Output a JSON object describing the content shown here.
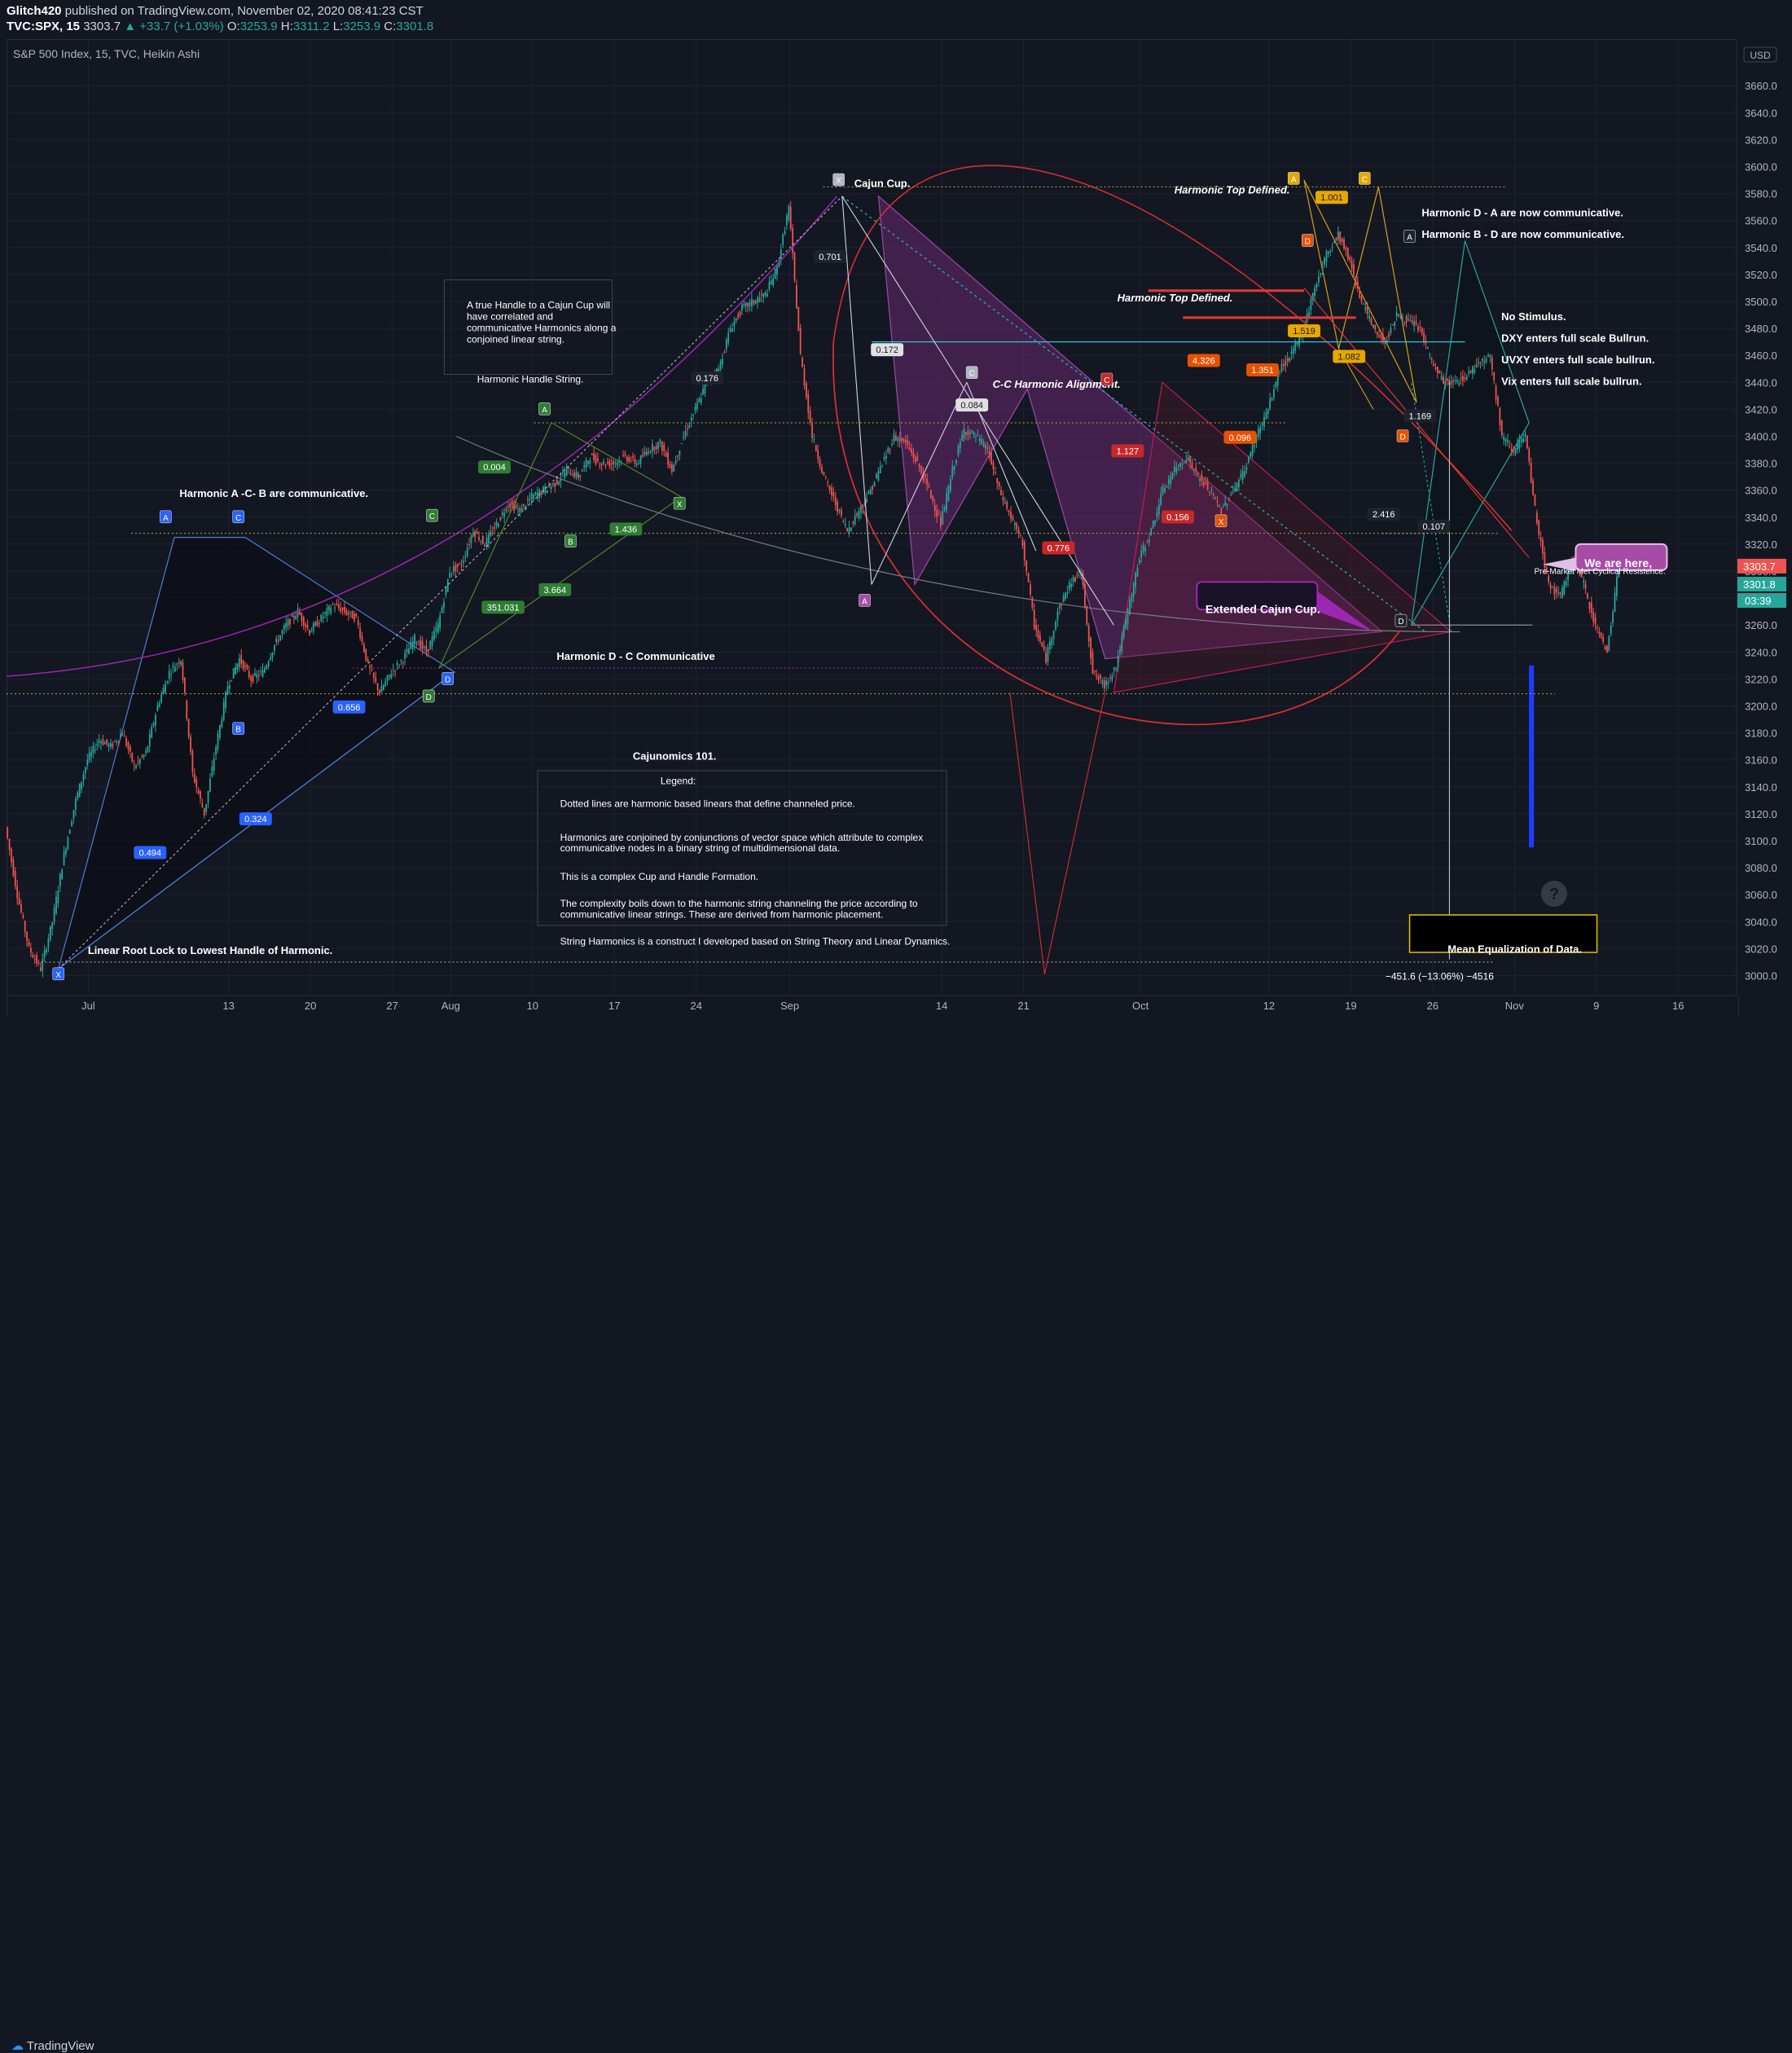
{
  "header": {
    "author": "Glitch420",
    "published_text": "published on TradingView.com, November 02, 2020 08:41:23 CST",
    "ticker": "TVC:SPX, 15",
    "last": "3303.7",
    "change": "+33.7 (+1.03%)",
    "o_label": "O:",
    "o_value": "3253.9",
    "h_label": "H:",
    "h_value": "3311.2",
    "l_label": "L:",
    "l_value": "3253.9",
    "c_label": "C:",
    "c_value": "3301.8"
  },
  "symbol_title": "S&P 500 Index, 15, TVC, Heikin Ashi",
  "footer": {
    "brand": "TradingView"
  },
  "price_axis": {
    "currency": "USD",
    "current_price_label": "3303.7",
    "second_price_label": "3301.8",
    "countdown": "03:39"
  },
  "chart_data": {
    "type": "line",
    "title": "S&P 500 Index, 15, TVC, Heikin Ashi",
    "ylim": [
      2990,
      3680
    ],
    "y_ticks": [
      3000,
      3020,
      3040,
      3060,
      3080,
      3100,
      3120,
      3140,
      3160,
      3180,
      3200,
      3220,
      3240,
      3260,
      3280,
      3300,
      3320,
      3340,
      3360,
      3380,
      3400,
      3420,
      3440,
      3460,
      3480,
      3500,
      3520,
      3540,
      3560,
      3580,
      3600,
      3620,
      3640,
      3660
    ],
    "x_ticks": [
      {
        "label": "Jul",
        "bar": 7
      },
      {
        "label": "13",
        "bar": 19
      },
      {
        "label": "20",
        "bar": 26
      },
      {
        "label": "27",
        "bar": 33
      },
      {
        "label": "Aug",
        "bar": 38
      },
      {
        "label": "10",
        "bar": 45
      },
      {
        "label": "17",
        "bar": 52
      },
      {
        "label": "24",
        "bar": 59
      },
      {
        "label": "Sep",
        "bar": 67
      },
      {
        "label": "14",
        "bar": 80
      },
      {
        "label": "21",
        "bar": 87
      },
      {
        "label": "Oct",
        "bar": 97
      },
      {
        "label": "12",
        "bar": 108
      },
      {
        "label": "19",
        "bar": 115
      },
      {
        "label": "26",
        "bar": 122
      },
      {
        "label": "Nov",
        "bar": 129
      },
      {
        "label": "9",
        "bar": 136
      },
      {
        "label": "16",
        "bar": 143
      }
    ],
    "x_range": [
      0,
      148
    ],
    "series": [
      {
        "values": [
          3110,
          3060,
          3020,
          3005,
          3040,
          3090,
          3130,
          3160,
          3175,
          3170,
          3180,
          3155,
          3165,
          3200,
          3225,
          3235,
          3150,
          3120,
          3170,
          3215,
          3235,
          3220,
          3225,
          3245,
          3260,
          3270,
          3255,
          3265,
          3275,
          3270,
          3265,
          3230,
          3210,
          3225,
          3235,
          3250,
          3240,
          3260,
          3300,
          3305,
          3330,
          3320,
          3335,
          3350,
          3345,
          3355,
          3360,
          3365,
          3375,
          3370,
          3385,
          3380,
          3380,
          3385,
          3380,
          3390,
          3395,
          3375,
          3400,
          3420,
          3440,
          3450,
          3480,
          3495,
          3500,
          3505,
          3525,
          3570,
          3460,
          3400,
          3370,
          3350,
          3330,
          3345,
          3360,
          3380,
          3400,
          3395,
          3380,
          3360,
          3335,
          3375,
          3405,
          3400,
          3390,
          3360,
          3340,
          3320,
          3260,
          3235,
          3270,
          3290,
          3300,
          3225,
          3215,
          3230,
          3270,
          3310,
          3330,
          3360,
          3375,
          3385,
          3370,
          3360,
          3345,
          3360,
          3375,
          3400,
          3420,
          3450,
          3460,
          3480,
          3510,
          3535,
          3550,
          3530,
          3500,
          3480,
          3470,
          3490,
          3485,
          3480,
          3455,
          3440,
          3440,
          3445,
          3455,
          3460,
          3400,
          3390,
          3400,
          3335,
          3290,
          3280,
          3310,
          3290,
          3260,
          3240,
          3305
        ]
      }
    ],
    "annotations": [
      "Cajun Cup.",
      "Harmonic Top Defined.",
      "Harmonic Top Defined.",
      "C-C Harmonic Alignment.",
      "Harmonic A -C- B are communicative.",
      "Harmonic D - C Communicative",
      "Linear Root Lock to Lowest Handle of Harmonic.",
      "Extended Cajun Cup.",
      "We are here,",
      "Pre-Market Met Cyclical Resistence.",
      "Mean Equalization of Data.",
      "−451.6 (−13.06%) −4516",
      "Harmonic D - A are now communicative.",
      "Harmonic B - D are now communicative.",
      "No Stimulus.",
      "DXY enters full scale Bullrun.",
      "UVXY enters full scale bullrun.",
      "Vix enters full scale bullrun.",
      "Harmonic Handle String.",
      "Cajunomics 101."
    ],
    "handle_note": [
      "A true Handle to a Cajun Cup will",
      "have correlated and",
      "communicative Harmonics along a",
      "conjoined linear string."
    ],
    "legend_box": {
      "title": "Legend:",
      "lines": [
        "Dotted lines are harmonic based linears that define channeled price.",
        "Harmonics are conjoined by conjunctions of vector space which attribute to complex",
        "communicative nodes in a binary string of multidimensional data.",
        "This is a complex Cup and Handle Formation.",
        "The complexity boils down to the harmonic string channeling the price according to",
        "communicative linear strings. These are derived from harmonic placement.",
        "String Harmonics is a construct I developed based on String Theory and Linear Dynamics."
      ]
    },
    "ratio_labels": [
      "0.494",
      "0.324",
      "0.656",
      "351.031",
      "3.664",
      "1.436",
      "0.004",
      "0.176",
      "0.701",
      "0.172",
      "0.084",
      "1.127",
      "0.156",
      "4.326",
      "1.001",
      "1.519",
      "1.082",
      "2.416",
      "0.107",
      "1.169",
      "0.096",
      "0.776",
      "1.351"
    ],
    "pattern_points": [
      "X",
      "A",
      "B",
      "C",
      "D"
    ]
  }
}
